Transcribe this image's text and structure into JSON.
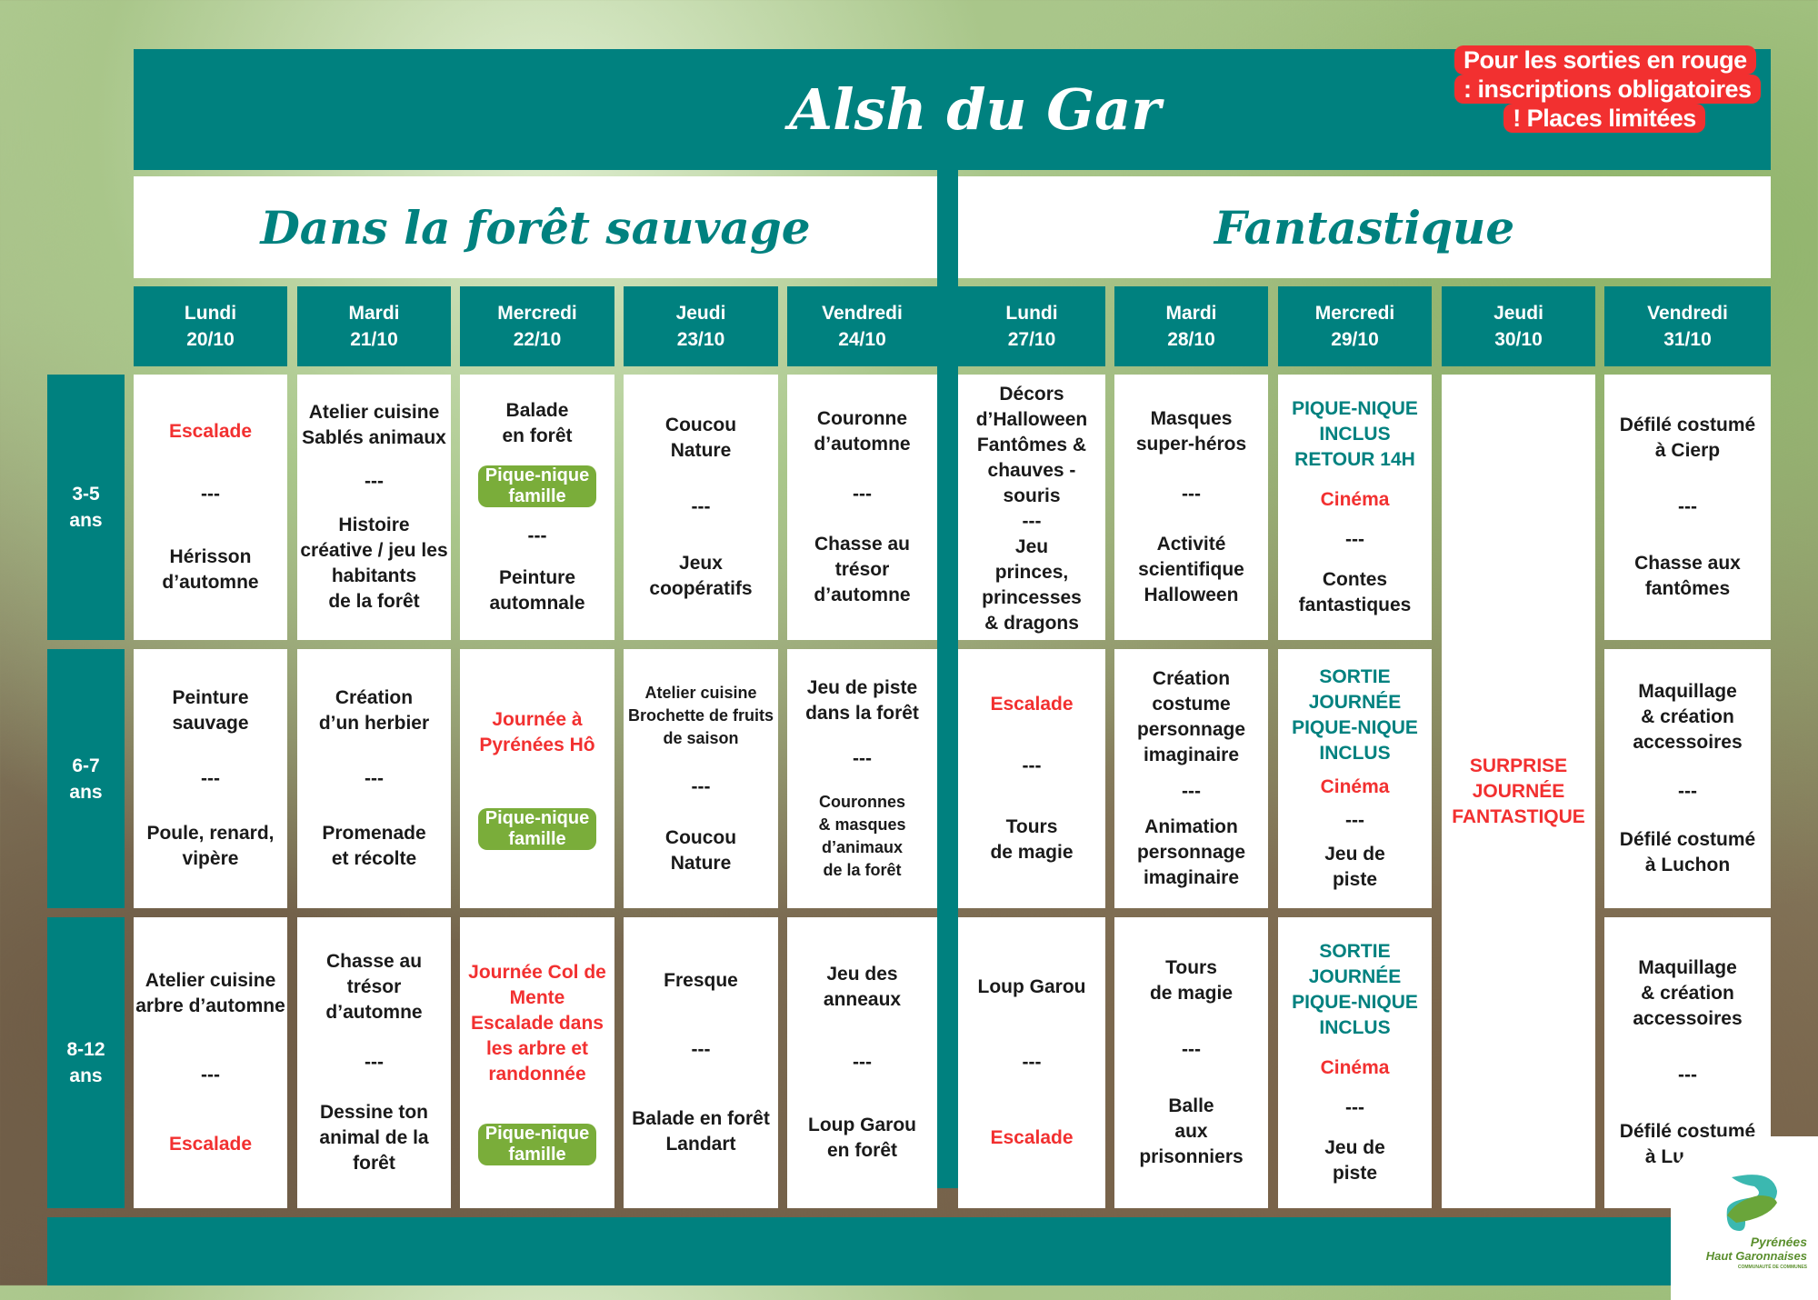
{
  "header": {
    "title": "Alsh du Gar",
    "notice": "Pour les sorties en rouge : inscriptions obligatoires ! Places limitées"
  },
  "themes": [
    "Dans la forêt sauvage",
    "Fantastique"
  ],
  "days": [
    "Lundi\n20/10",
    "Mardi\n21/10",
    "Mercredi\n22/10",
    "Jeudi\n23/10",
    "Vendredi\n24/10",
    "Lundi\n27/10",
    "Mardi\n28/10",
    "Mercredi\n29/10",
    "Jeudi\n30/10",
    "Vendredi\n31/10"
  ],
  "ages": [
    "3-5\nans",
    "6-7\nans",
    "8-12\nans"
  ],
  "colors": {
    "teal": "#00817f",
    "red": "#f23030",
    "green": "#7aad3a"
  },
  "rows": [
    [
      [
        {
          "t": "Escalade",
          "c": "red"
        },
        {
          "t": "---"
        },
        {
          "t": "Hérisson\nd’automne"
        }
      ],
      [
        {
          "t": "Atelier cuisine\nSablés animaux"
        },
        {
          "t": "---"
        },
        {
          "t": "Histoire\ncréative / jeu les\nhabitants\nde la forêt"
        }
      ],
      [
        {
          "t": "Balade\nen forêt"
        },
        {
          "t": "Pique-nique\nfamille",
          "c": "badge"
        },
        {
          "t": "---"
        },
        {
          "t": "Peinture\nautomnale"
        }
      ],
      [
        {
          "t": "Coucou\nNature"
        },
        {
          "t": "---"
        },
        {
          "t": "Jeux\ncoopératifs"
        }
      ],
      [
        {
          "t": "Couronne\nd’automne"
        },
        {
          "t": "---"
        },
        {
          "t": "Chasse au\ntrésor\nd’automne"
        }
      ],
      [
        {
          "t": "Décors\nd’Halloween\nFantômes &\nchauves -souris"
        },
        {
          "t": "---"
        },
        {
          "t": "Jeu\nprinces,\nprincesses\n& dragons"
        }
      ],
      [
        {
          "t": "Masques\nsuper-héros"
        },
        {
          "t": "---"
        },
        {
          "t": "Activité\nscientifique\nHalloween"
        }
      ],
      [
        {
          "t": "PIQUE-NIQUE\nINCLUS\nRETOUR 14H",
          "c": "tealc"
        },
        {
          "t": "Cinéma",
          "c": "red"
        },
        {
          "t": "---"
        },
        {
          "t": "Contes\nfantastiques"
        }
      ],
      [
        {
          "t": "SURPRISE\nJOURNÉE\nFANTASTIQUE",
          "c": "red"
        }
      ],
      [
        {
          "t": "Défilé costumé\nà Cierp"
        },
        {
          "t": "---"
        },
        {
          "t": "Chasse aux\nfantômes"
        }
      ]
    ],
    [
      [
        {
          "t": "Peinture\nsauvage"
        },
        {
          "t": "---"
        },
        {
          "t": "Poule, renard,\nvipère"
        }
      ],
      [
        {
          "t": "Création\nd’un herbier"
        },
        {
          "t": "---"
        },
        {
          "t": "Promenade\net récolte"
        }
      ],
      [
        {
          "t": "Journée à\nPyrénées Hô",
          "c": "red"
        },
        {
          "t": "Pique-nique\nfamille",
          "c": "badge"
        }
      ],
      [
        {
          "t": "Atelier cuisine\nBrochette de fruits\nde saison",
          "c": "small"
        },
        {
          "t": "---"
        },
        {
          "t": "Coucou\nNature"
        }
      ],
      [
        {
          "t": "Jeu de piste\ndans la forêt"
        },
        {
          "t": "---"
        },
        {
          "t": "Couronnes\n& masques\nd’animaux\nde la forêt",
          "c": "small"
        }
      ],
      [
        {
          "t": "Escalade",
          "c": "red"
        },
        {
          "t": "---"
        },
        {
          "t": "Tours\nde magie"
        }
      ],
      [
        {
          "t": "Création\ncostume\npersonnage\nimaginaire"
        },
        {
          "t": "---"
        },
        {
          "t": "Animation\npersonnage\nimaginaire"
        }
      ],
      [
        {
          "t": "SORTIE JOURNÉE\nPIQUE-NIQUE\nINCLUS",
          "c": "tealc"
        },
        {
          "t": "Cinéma",
          "c": "red"
        },
        {
          "t": "---"
        },
        {
          "t": "Jeu de\npiste"
        }
      ],
      null,
      [
        {
          "t": "Maquillage\n& création\naccessoires"
        },
        {
          "t": "---"
        },
        {
          "t": "Défilé costumé\nà Luchon"
        }
      ]
    ],
    [
      [
        {
          "t": "Atelier cuisine\narbre d’automne"
        },
        {
          "t": "---"
        },
        {
          "t": "Escalade",
          "c": "red"
        }
      ],
      [
        {
          "t": "Chasse au trésor\nd’automne"
        },
        {
          "t": "---"
        },
        {
          "t": "Dessine ton\nanimal de la forêt"
        }
      ],
      [
        {
          "t": "Journée Col de\nMente\nEscalade dans\nles arbre et\nrandonnée",
          "c": "red"
        },
        {
          "t": "Pique-nique\nfamille",
          "c": "badge"
        }
      ],
      [
        {
          "t": "Fresque"
        },
        {
          "t": "---"
        },
        {
          "t": "Balade en forêt\nLandart"
        }
      ],
      [
        {
          "t": "Jeu des\nanneaux"
        },
        {
          "t": "---"
        },
        {
          "t": "Loup Garou\nen forêt"
        }
      ],
      [
        {
          "t": "Loup Garou"
        },
        {
          "t": "---"
        },
        {
          "t": "Escalade",
          "c": "red"
        }
      ],
      [
        {
          "t": "Tours\nde magie"
        },
        {
          "t": "---"
        },
        {
          "t": "Balle\naux\nprisonniers"
        }
      ],
      [
        {
          "t": "SORTIE JOURNÉE\nPIQUE-NIQUE\nINCLUS",
          "c": "tealc"
        },
        {
          "t": "Cinéma",
          "c": "red"
        },
        {
          "t": "---"
        },
        {
          "t": "Jeu de\npiste"
        }
      ],
      null,
      [
        {
          "t": "Maquillage\n& création\naccessoires"
        },
        {
          "t": "---"
        },
        {
          "t": "Défilé  costumé\nà Luchon"
        }
      ]
    ]
  ],
  "logo": {
    "line1": "Pyrénées",
    "line2": "Haut Garonnaises",
    "line3": "COMMUNAUTÉ DE COMMUNES"
  }
}
